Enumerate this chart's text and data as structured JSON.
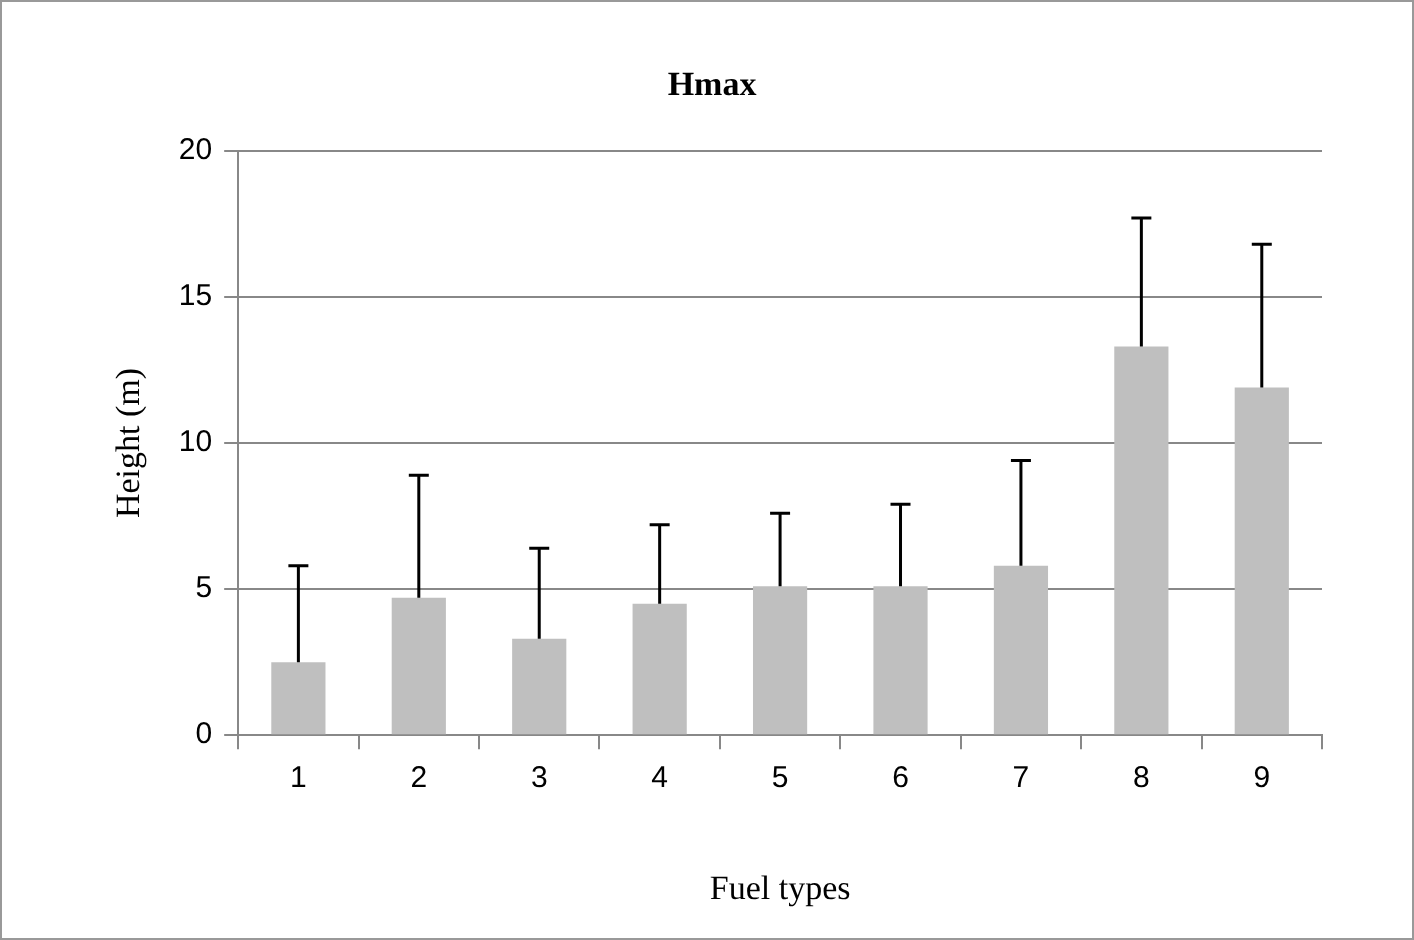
{
  "chart_data": {
    "type": "bar",
    "title": "Hmax",
    "xlabel": "Fuel types",
    "ylabel": "Height (m)",
    "categories": [
      "1",
      "2",
      "3",
      "4",
      "5",
      "6",
      "7",
      "8",
      "9"
    ],
    "values": [
      2.5,
      4.7,
      3.3,
      4.5,
      5.1,
      5.1,
      5.8,
      13.3,
      11.9
    ],
    "errors": [
      [
        2.5,
        5.8
      ],
      [
        4.7,
        8.9
      ],
      [
        3.3,
        6.4
      ],
      [
        4.5,
        7.2
      ],
      [
        5.1,
        7.6
      ],
      [
        5.1,
        7.9
      ],
      [
        5.8,
        9.4
      ],
      [
        13.3,
        17.7
      ],
      [
        11.9,
        16.8
      ]
    ],
    "color": "#bfbfbf",
    "ylim": [
      0,
      20
    ],
    "yticks": [
      0,
      5,
      10,
      15,
      20
    ],
    "grid": "y",
    "legend": false
  }
}
